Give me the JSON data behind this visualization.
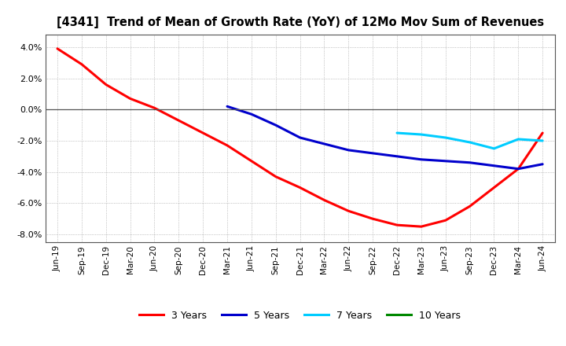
{
  "title": "[4341]  Trend of Mean of Growth Rate (YoY) of 12Mo Mov Sum of Revenues",
  "ylim": [
    -0.085,
    0.048
  ],
  "yticks": [
    -0.08,
    -0.06,
    -0.04,
    -0.02,
    0.0,
    0.02,
    0.04
  ],
  "background_color": "#ffffff",
  "grid_color": "#999999",
  "zero_line_color": "#555555",
  "series": {
    "3 Years": {
      "color": "#ff0000",
      "x": [
        0,
        1,
        2,
        3,
        4,
        5,
        6,
        7,
        8,
        9,
        10,
        11,
        12,
        13,
        14,
        15,
        16,
        17,
        18,
        19,
        20
      ],
      "y": [
        0.039,
        0.029,
        0.016,
        0.007,
        0.001,
        -0.007,
        -0.015,
        -0.023,
        -0.033,
        -0.043,
        -0.05,
        -0.058,
        -0.065,
        -0.07,
        -0.074,
        -0.075,
        -0.071,
        -0.062,
        -0.05,
        -0.038,
        -0.015
      ]
    },
    "5 Years": {
      "color": "#0000cc",
      "x": [
        7,
        8,
        9,
        10,
        11,
        12,
        13,
        14,
        15,
        16,
        17,
        18,
        19,
        20
      ],
      "y": [
        0.002,
        -0.003,
        -0.01,
        -0.018,
        -0.022,
        -0.026,
        -0.028,
        -0.03,
        -0.032,
        -0.033,
        -0.034,
        -0.036,
        -0.038,
        -0.035
      ]
    },
    "7 Years": {
      "color": "#00ccff",
      "x": [
        14,
        15,
        16,
        17,
        18,
        19,
        20
      ],
      "y": [
        -0.015,
        -0.016,
        -0.018,
        -0.021,
        -0.025,
        -0.019,
        -0.02
      ]
    },
    "10 Years": {
      "color": "#008800",
      "x": [],
      "y": []
    }
  },
  "xtick_labels": [
    "Jun-19",
    "Sep-19",
    "Dec-19",
    "Mar-20",
    "Jun-20",
    "Sep-20",
    "Dec-20",
    "Mar-21",
    "Jun-21",
    "Sep-21",
    "Dec-21",
    "Mar-22",
    "Jun-22",
    "Sep-22",
    "Dec-22",
    "Mar-23",
    "Jun-23",
    "Sep-23",
    "Dec-23",
    "Mar-24",
    "Jun-24"
  ],
  "xtick_positions": [
    0,
    1,
    2,
    3,
    4,
    5,
    6,
    7,
    8,
    9,
    10,
    11,
    12,
    13,
    14,
    15,
    16,
    17,
    18,
    19,
    20
  ],
  "legend_labels": [
    "3 Years",
    "5 Years",
    "7 Years",
    "10 Years"
  ],
  "legend_colors": [
    "#ff0000",
    "#0000cc",
    "#00ccff",
    "#008800"
  ]
}
